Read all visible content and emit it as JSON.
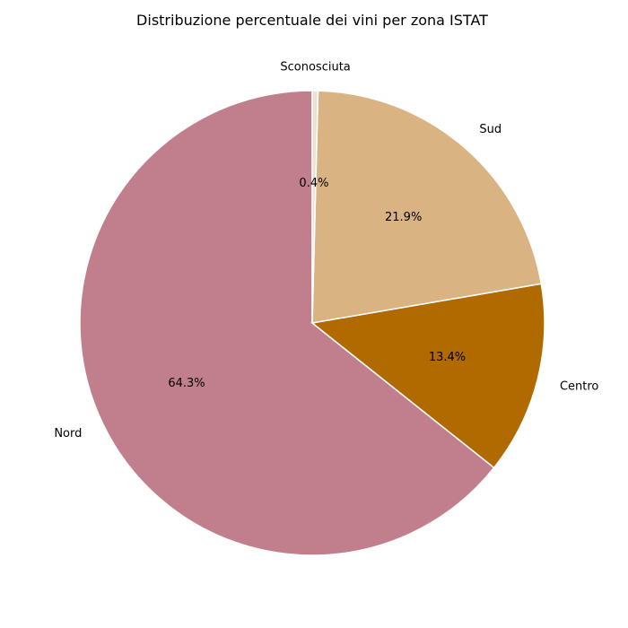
{
  "chart_data": {
    "type": "pie",
    "title": "Distribuzione percentuale dei vini per zona ISTAT",
    "start_angle_deg": 90,
    "direction": "counterclockwise",
    "slices": [
      {
        "label": "Nord",
        "value": 64.3,
        "pct_label": "64.3%",
        "color": "#c17f8d"
      },
      {
        "label": "Centro",
        "value": 13.4,
        "pct_label": "13.4%",
        "color": "#b06a00"
      },
      {
        "label": "Sud",
        "value": 21.9,
        "pct_label": "21.9%",
        "color": "#d9b382"
      },
      {
        "label": "Sconosciuta",
        "value": 0.4,
        "pct_label": "0.4%",
        "color": "#f0e0d0"
      }
    ]
  }
}
